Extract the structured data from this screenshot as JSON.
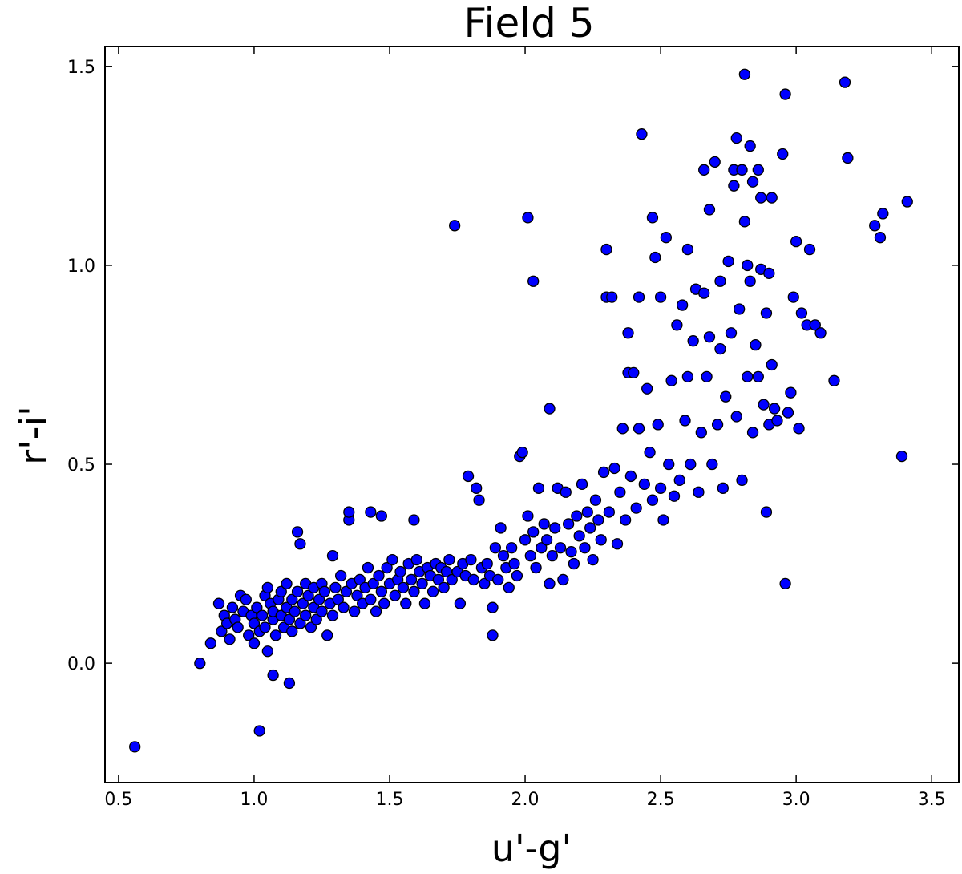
{
  "chart_data": {
    "type": "scatter",
    "title": "Field 5",
    "xlabel": "u'-g'",
    "ylabel": "r'-i'",
    "xlim": [
      0.45,
      3.6
    ],
    "ylim": [
      -0.3,
      1.55
    ],
    "xticks": [
      "0.5",
      "1.0",
      "1.5",
      "2.0",
      "2.5",
      "3.0",
      "3.5"
    ],
    "yticks": [
      "0.0",
      "0.5",
      "1.0",
      "1.5"
    ],
    "grid": false,
    "marker_color": "#0000ff",
    "series": [
      {
        "points": [
          [
            0.56,
            -0.21
          ],
          [
            0.8,
            0.0
          ],
          [
            1.02,
            -0.17
          ],
          [
            1.07,
            -0.03
          ],
          [
            1.13,
            -0.05
          ],
          [
            1.88,
            0.07
          ],
          [
            2.96,
            0.2
          ],
          [
            3.39,
            0.52
          ],
          [
            0.84,
            0.05
          ],
          [
            0.87,
            0.15
          ],
          [
            0.88,
            0.08
          ],
          [
            0.89,
            0.12
          ],
          [
            0.9,
            0.1
          ],
          [
            0.91,
            0.06
          ],
          [
            0.92,
            0.14
          ],
          [
            0.93,
            0.11
          ],
          [
            0.94,
            0.09
          ],
          [
            0.95,
            0.17
          ],
          [
            0.96,
            0.13
          ],
          [
            0.97,
            0.16
          ],
          [
            0.98,
            0.07
          ],
          [
            0.99,
            0.12
          ],
          [
            1.0,
            0.05
          ],
          [
            1.0,
            0.1
          ],
          [
            1.01,
            0.14
          ],
          [
            1.02,
            0.08
          ],
          [
            1.03,
            0.12
          ],
          [
            1.04,
            0.17
          ],
          [
            1.04,
            0.09
          ],
          [
            1.05,
            0.19
          ],
          [
            1.05,
            0.03
          ],
          [
            1.06,
            0.15
          ],
          [
            1.07,
            0.11
          ],
          [
            1.07,
            0.13
          ],
          [
            1.08,
            0.07
          ],
          [
            1.09,
            0.16
          ],
          [
            1.1,
            0.12
          ],
          [
            1.1,
            0.18
          ],
          [
            1.11,
            0.09
          ],
          [
            1.12,
            0.14
          ],
          [
            1.12,
            0.2
          ],
          [
            1.13,
            0.11
          ],
          [
            1.14,
            0.08
          ],
          [
            1.14,
            0.16
          ],
          [
            1.15,
            0.13
          ],
          [
            1.16,
            0.33
          ],
          [
            1.16,
            0.18
          ],
          [
            1.17,
            0.1
          ],
          [
            1.17,
            0.3
          ],
          [
            1.18,
            0.15
          ],
          [
            1.19,
            0.12
          ],
          [
            1.19,
            0.2
          ],
          [
            1.2,
            0.17
          ],
          [
            1.21,
            0.09
          ],
          [
            1.22,
            0.14
          ],
          [
            1.22,
            0.19
          ],
          [
            1.23,
            0.11
          ],
          [
            1.24,
            0.16
          ],
          [
            1.25,
            0.13
          ],
          [
            1.25,
            0.2
          ],
          [
            1.26,
            0.18
          ],
          [
            1.27,
            0.07
          ],
          [
            1.28,
            0.15
          ],
          [
            1.29,
            0.12
          ],
          [
            1.29,
            0.27
          ],
          [
            1.3,
            0.19
          ],
          [
            1.31,
            0.16
          ],
          [
            1.32,
            0.22
          ],
          [
            1.33,
            0.14
          ],
          [
            1.34,
            0.18
          ],
          [
            1.35,
            0.36
          ],
          [
            1.35,
            0.38
          ],
          [
            1.36,
            0.2
          ],
          [
            1.37,
            0.13
          ],
          [
            1.38,
            0.17
          ],
          [
            1.39,
            0.21
          ],
          [
            1.4,
            0.15
          ],
          [
            1.41,
            0.19
          ],
          [
            1.42,
            0.24
          ],
          [
            1.43,
            0.38
          ],
          [
            1.43,
            0.16
          ],
          [
            1.44,
            0.2
          ],
          [
            1.45,
            0.13
          ],
          [
            1.46,
            0.22
          ],
          [
            1.47,
            0.37
          ],
          [
            1.47,
            0.18
          ],
          [
            1.48,
            0.15
          ],
          [
            1.49,
            0.24
          ],
          [
            1.5,
            0.2
          ],
          [
            1.51,
            0.26
          ],
          [
            1.52,
            0.17
          ],
          [
            1.53,
            0.21
          ],
          [
            1.54,
            0.23
          ],
          [
            1.55,
            0.19
          ],
          [
            1.56,
            0.15
          ],
          [
            1.57,
            0.25
          ],
          [
            1.58,
            0.21
          ],
          [
            1.59,
            0.36
          ],
          [
            1.59,
            0.18
          ],
          [
            1.6,
            0.26
          ],
          [
            1.61,
            0.23
          ],
          [
            1.62,
            0.2
          ],
          [
            1.63,
            0.15
          ],
          [
            1.64,
            0.24
          ],
          [
            1.65,
            0.22
          ],
          [
            1.66,
            0.18
          ],
          [
            1.67,
            0.25
          ],
          [
            1.68,
            0.21
          ],
          [
            1.69,
            0.24
          ],
          [
            1.7,
            0.19
          ],
          [
            1.71,
            0.23
          ],
          [
            1.72,
            0.26
          ],
          [
            1.73,
            0.21
          ],
          [
            1.74,
            1.1
          ],
          [
            1.75,
            0.23
          ],
          [
            1.76,
            0.15
          ],
          [
            1.77,
            0.25
          ],
          [
            1.78,
            0.22
          ],
          [
            1.79,
            0.47
          ],
          [
            1.8,
            0.26
          ],
          [
            1.81,
            0.21
          ],
          [
            1.82,
            0.44
          ],
          [
            1.83,
            0.41
          ],
          [
            1.84,
            0.24
          ],
          [
            1.85,
            0.2
          ],
          [
            1.86,
            0.25
          ],
          [
            1.87,
            0.22
          ],
          [
            1.88,
            0.14
          ],
          [
            1.89,
            0.29
          ],
          [
            1.9,
            0.21
          ],
          [
            1.91,
            0.34
          ],
          [
            1.92,
            0.27
          ],
          [
            1.93,
            0.24
          ],
          [
            1.94,
            0.19
          ],
          [
            1.95,
            0.29
          ],
          [
            1.96,
            0.25
          ],
          [
            1.97,
            0.22
          ],
          [
            1.98,
            0.52
          ],
          [
            1.99,
            0.53
          ],
          [
            2.0,
            0.31
          ],
          [
            2.01,
            0.37
          ],
          [
            2.01,
            1.12
          ],
          [
            2.02,
            0.27
          ],
          [
            2.03,
            0.96
          ],
          [
            2.03,
            0.33
          ],
          [
            2.04,
            0.24
          ],
          [
            2.05,
            0.44
          ],
          [
            2.06,
            0.29
          ],
          [
            2.07,
            0.35
          ],
          [
            2.08,
            0.31
          ],
          [
            2.09,
            0.2
          ],
          [
            2.09,
            0.64
          ],
          [
            2.1,
            0.27
          ],
          [
            2.11,
            0.34
          ],
          [
            2.12,
            0.44
          ],
          [
            2.13,
            0.29
          ],
          [
            2.14,
            0.21
          ],
          [
            2.15,
            0.43
          ],
          [
            2.16,
            0.35
          ],
          [
            2.17,
            0.28
          ],
          [
            2.18,
            0.25
          ],
          [
            2.19,
            0.37
          ],
          [
            2.2,
            0.32
          ],
          [
            2.21,
            0.45
          ],
          [
            2.22,
            0.29
          ],
          [
            2.23,
            0.38
          ],
          [
            2.24,
            0.34
          ],
          [
            2.25,
            0.26
          ],
          [
            2.26,
            0.41
          ],
          [
            2.27,
            0.36
          ],
          [
            2.28,
            0.31
          ],
          [
            2.29,
            0.48
          ],
          [
            2.3,
            1.04
          ],
          [
            2.3,
            0.92
          ],
          [
            2.31,
            0.38
          ],
          [
            2.32,
            0.92
          ],
          [
            2.33,
            0.49
          ],
          [
            2.34,
            0.3
          ],
          [
            2.35,
            0.43
          ],
          [
            2.36,
            0.59
          ],
          [
            2.37,
            0.36
          ],
          [
            2.38,
            0.73
          ],
          [
            2.38,
            0.83
          ],
          [
            2.39,
            0.47
          ],
          [
            2.4,
            0.73
          ],
          [
            2.41,
            0.39
          ],
          [
            2.42,
            0.59
          ],
          [
            2.42,
            0.92
          ],
          [
            2.43,
            1.33
          ],
          [
            2.44,
            0.45
          ],
          [
            2.45,
            0.69
          ],
          [
            2.46,
            0.53
          ],
          [
            2.47,
            0.41
          ],
          [
            2.47,
            1.12
          ],
          [
            2.48,
            1.02
          ],
          [
            2.49,
            0.6
          ],
          [
            2.5,
            0.44
          ],
          [
            2.5,
            0.92
          ],
          [
            2.51,
            0.36
          ],
          [
            2.52,
            1.07
          ],
          [
            2.53,
            0.5
          ],
          [
            2.54,
            0.71
          ],
          [
            2.55,
            0.42
          ],
          [
            2.56,
            0.85
          ],
          [
            2.57,
            0.46
          ],
          [
            2.58,
            0.9
          ],
          [
            2.59,
            0.61
          ],
          [
            2.6,
            0.72
          ],
          [
            2.6,
            1.04
          ],
          [
            2.61,
            0.5
          ],
          [
            2.62,
            0.81
          ],
          [
            2.63,
            0.94
          ],
          [
            2.64,
            0.43
          ],
          [
            2.65,
            0.58
          ],
          [
            2.66,
            0.93
          ],
          [
            2.66,
            1.24
          ],
          [
            2.67,
            0.72
          ],
          [
            2.68,
            0.82
          ],
          [
            2.68,
            1.14
          ],
          [
            2.69,
            0.5
          ],
          [
            2.7,
            1.26
          ],
          [
            2.71,
            0.6
          ],
          [
            2.72,
            0.79
          ],
          [
            2.72,
            0.96
          ],
          [
            2.73,
            0.44
          ],
          [
            2.74,
            0.67
          ],
          [
            2.75,
            1.01
          ],
          [
            2.76,
            0.83
          ],
          [
            2.77,
            1.24
          ],
          [
            2.77,
            1.2
          ],
          [
            2.78,
            0.62
          ],
          [
            2.78,
            1.32
          ],
          [
            2.79,
            0.89
          ],
          [
            2.8,
            0.46
          ],
          [
            2.8,
            1.24
          ],
          [
            2.81,
            1.11
          ],
          [
            2.81,
            1.48
          ],
          [
            2.82,
            0.72
          ],
          [
            2.82,
            1.0
          ],
          [
            2.83,
            1.3
          ],
          [
            2.83,
            0.96
          ],
          [
            2.84,
            0.58
          ],
          [
            2.84,
            1.21
          ],
          [
            2.85,
            0.8
          ],
          [
            2.86,
            0.72
          ],
          [
            2.86,
            1.24
          ],
          [
            2.87,
            0.99
          ],
          [
            2.87,
            1.17
          ],
          [
            2.88,
            0.65
          ],
          [
            2.89,
            0.88
          ],
          [
            2.89,
            0.38
          ],
          [
            2.9,
            0.98
          ],
          [
            2.9,
            0.6
          ],
          [
            2.91,
            0.75
          ],
          [
            2.91,
            1.17
          ],
          [
            2.92,
            0.64
          ],
          [
            2.93,
            0.61
          ],
          [
            2.95,
            1.28
          ],
          [
            2.96,
            1.43
          ],
          [
            2.97,
            0.63
          ],
          [
            2.98,
            0.68
          ],
          [
            2.99,
            0.92
          ],
          [
            3.0,
            1.06
          ],
          [
            3.01,
            0.59
          ],
          [
            3.02,
            0.88
          ],
          [
            3.04,
            0.85
          ],
          [
            3.05,
            1.04
          ],
          [
            3.07,
            0.85
          ],
          [
            3.09,
            0.83
          ],
          [
            3.14,
            0.71
          ],
          [
            3.18,
            1.46
          ],
          [
            3.19,
            1.27
          ],
          [
            3.29,
            1.1
          ],
          [
            3.31,
            1.07
          ],
          [
            3.32,
            1.13
          ],
          [
            3.41,
            1.16
          ]
        ]
      }
    ]
  }
}
